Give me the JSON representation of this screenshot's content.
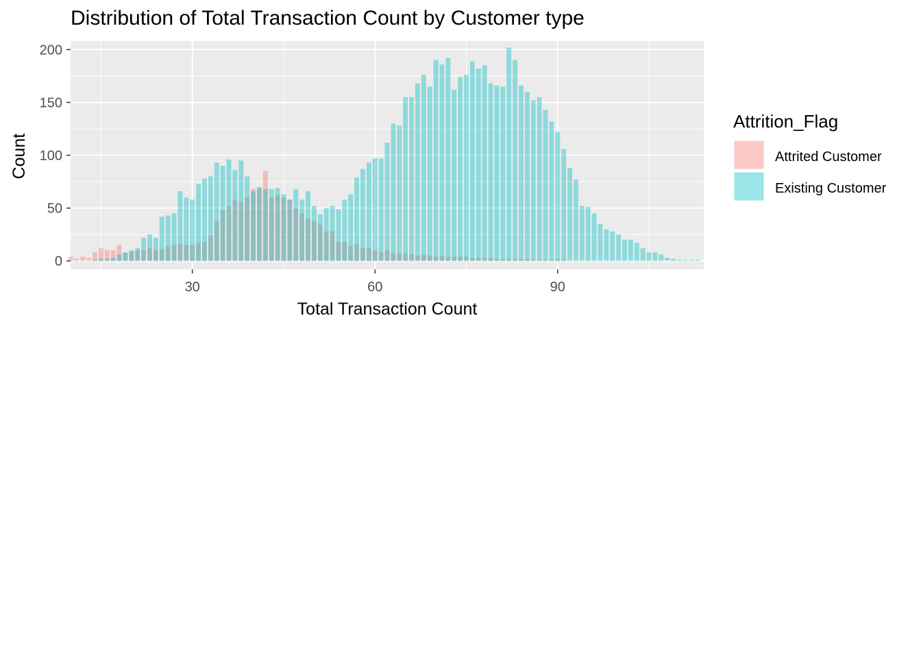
{
  "chart_data": {
    "type": "bar",
    "title": "Distribution of Total Transaction Count by Customer type",
    "xlabel": "Total Transaction Count",
    "ylabel": "Count",
    "xlim": [
      10,
      114
    ],
    "ylim": [
      -8,
      208
    ],
    "xticks": [
      30,
      60,
      90
    ],
    "yticks": [
      0,
      50,
      100,
      150,
      200
    ],
    "grid": true,
    "legend_title": "Attrition_Flag",
    "legend_position": "right",
    "series": [
      {
        "name": "Attrited Customer",
        "color": "#f8766d",
        "x": [
          10,
          11,
          12,
          13,
          14,
          15,
          16,
          17,
          18,
          19,
          20,
          21,
          22,
          23,
          24,
          25,
          26,
          27,
          28,
          29,
          30,
          31,
          32,
          33,
          34,
          35,
          36,
          37,
          38,
          39,
          40,
          41,
          42,
          43,
          44,
          45,
          46,
          47,
          48,
          49,
          50,
          51,
          52,
          53,
          54,
          55,
          56,
          57,
          58,
          59,
          60,
          61,
          62,
          63,
          64,
          65,
          66,
          67,
          68,
          69,
          70,
          71,
          72,
          73,
          74,
          75,
          76,
          77,
          78,
          79,
          80,
          81,
          82,
          83,
          84,
          85,
          86,
          87,
          88,
          89,
          90,
          91
        ],
        "values": [
          4,
          2,
          4,
          3,
          8,
          12,
          10,
          10,
          15,
          8,
          9,
          10,
          10,
          12,
          10,
          11,
          14,
          15,
          16,
          15,
          15,
          17,
          18,
          24,
          38,
          48,
          52,
          58,
          56,
          60,
          68,
          70,
          85,
          60,
          62,
          60,
          58,
          50,
          45,
          40,
          38,
          35,
          28,
          28,
          18,
          18,
          14,
          16,
          12,
          12,
          10,
          8,
          10,
          7,
          7,
          7,
          6,
          5,
          6,
          5,
          4,
          5,
          4,
          4,
          4,
          4,
          3,
          3,
          3,
          3,
          2,
          2,
          2,
          2,
          2,
          2,
          1,
          1,
          1,
          1,
          2,
          1
        ]
      },
      {
        "name": "Existing Customer",
        "color": "#00bfc4",
        "x": [
          10,
          11,
          12,
          13,
          14,
          15,
          16,
          17,
          18,
          19,
          20,
          21,
          22,
          23,
          24,
          25,
          26,
          27,
          28,
          29,
          30,
          31,
          32,
          33,
          34,
          35,
          36,
          37,
          38,
          39,
          40,
          41,
          42,
          43,
          44,
          45,
          46,
          47,
          48,
          49,
          50,
          51,
          52,
          53,
          54,
          55,
          56,
          57,
          58,
          59,
          60,
          61,
          62,
          63,
          64,
          65,
          66,
          67,
          68,
          69,
          70,
          71,
          72,
          73,
          74,
          75,
          76,
          77,
          78,
          79,
          80,
          81,
          82,
          83,
          84,
          85,
          86,
          87,
          88,
          89,
          90,
          91,
          92,
          93,
          94,
          95,
          96,
          97,
          98,
          99,
          100,
          101,
          102,
          103,
          104,
          105,
          106,
          107,
          108,
          109,
          110,
          111,
          112,
          113
        ],
        "values": [
          0,
          0,
          0,
          0,
          1,
          2,
          2,
          3,
          6,
          8,
          10,
          12,
          22,
          25,
          22,
          42,
          43,
          45,
          66,
          60,
          58,
          73,
          78,
          80,
          93,
          90,
          96,
          86,
          95,
          80,
          66,
          69,
          68,
          68,
          69,
          63,
          58,
          68,
          58,
          66,
          52,
          44,
          50,
          52,
          49,
          58,
          63,
          79,
          87,
          93,
          97,
          97,
          112,
          130,
          128,
          155,
          155,
          168,
          176,
          165,
          190,
          186,
          192,
          162,
          174,
          176,
          189,
          182,
          185,
          168,
          166,
          165,
          202,
          190,
          166,
          160,
          152,
          155,
          143,
          132,
          122,
          106,
          88,
          77,
          52,
          51,
          45,
          35,
          30,
          28,
          25,
          20,
          20,
          17,
          12,
          8,
          8,
          6,
          3,
          2,
          1,
          1,
          1,
          1
        ]
      }
    ]
  }
}
